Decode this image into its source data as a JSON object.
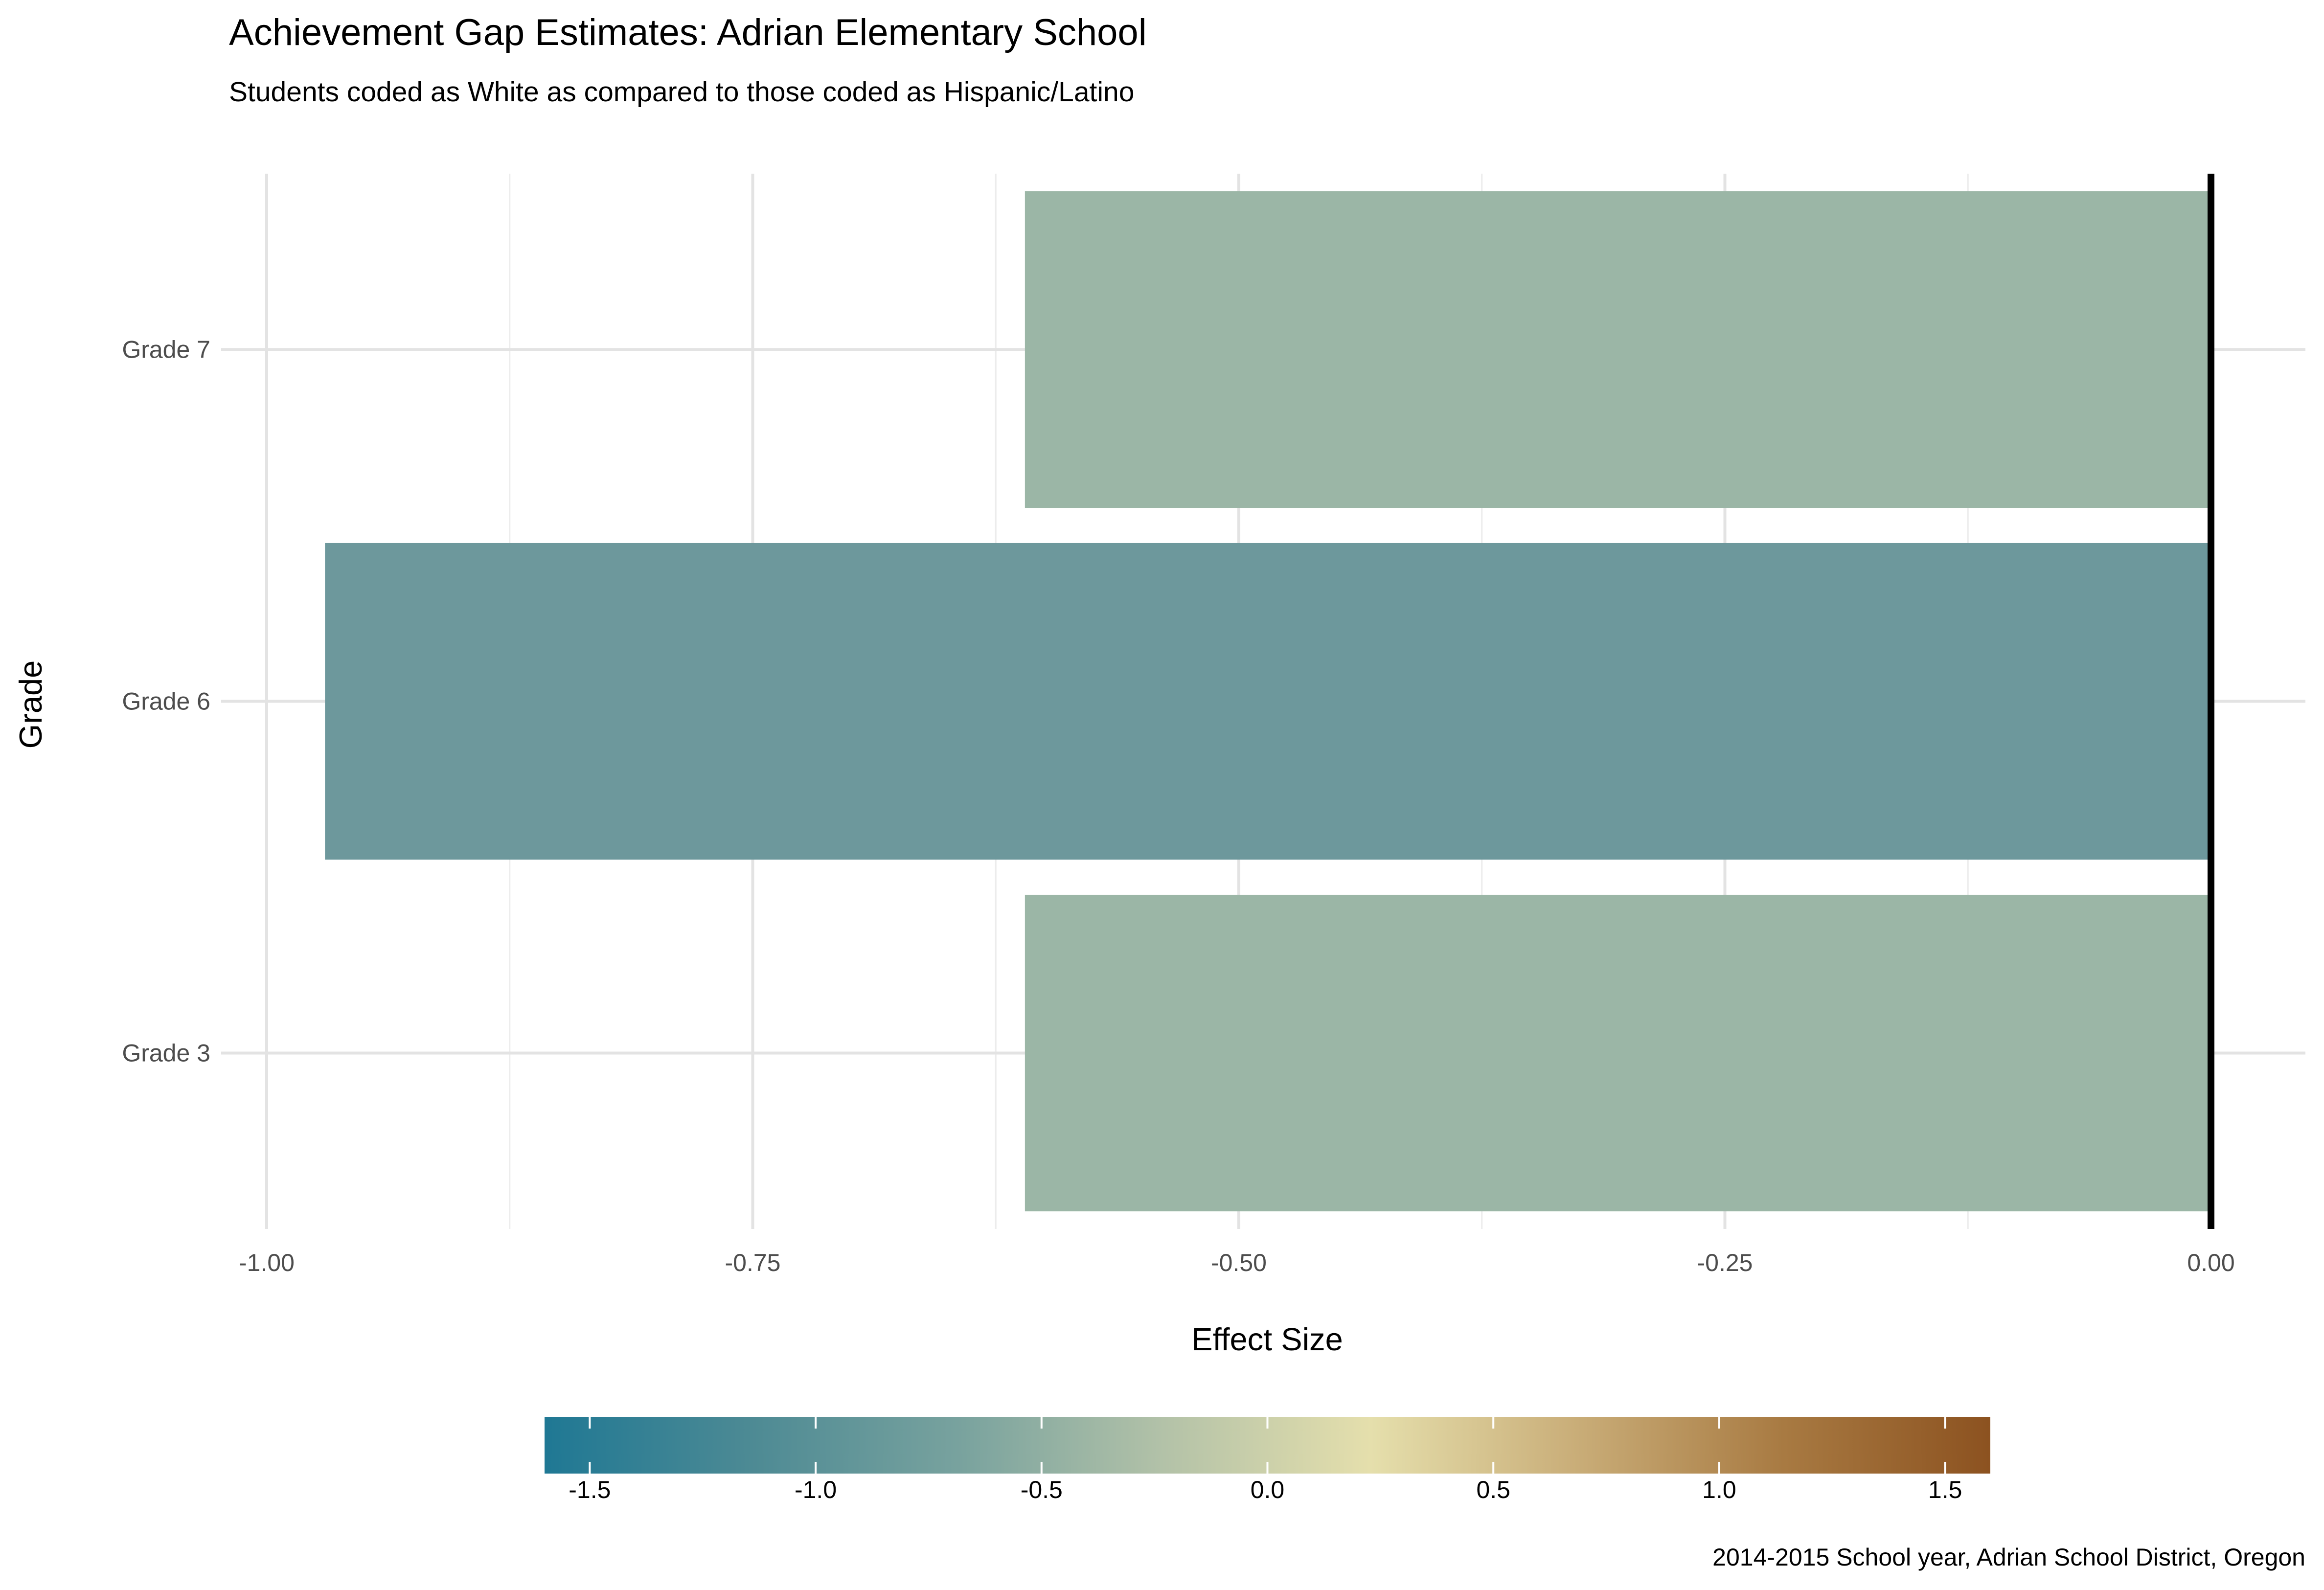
{
  "chart_data": {
    "type": "bar",
    "orientation": "horizontal",
    "title": "Achievement Gap Estimates: Adrian Elementary School",
    "subtitle": "Students coded as White as compared to those coded as Hispanic/Latino",
    "xlabel": "Effect Size",
    "ylabel": "Grade",
    "caption": "2014-2015 School year, Adrian School District, Oregon",
    "categories": [
      "Grade 7",
      "Grade 6",
      "Grade 3"
    ],
    "values": [
      -0.61,
      -0.97,
      -0.61
    ],
    "xlim": [
      -1.0,
      0.0
    ],
    "x_ticks": [
      "-1.00",
      "-0.75",
      "-0.50",
      "-0.25",
      "0.00"
    ],
    "grid": true,
    "reference_line": 0,
    "legend": {
      "type": "colorbar",
      "placement": "bottom",
      "range": [
        -1.6,
        1.6
      ],
      "ticks": [
        "-1.5",
        "-1.0",
        "-0.5",
        "0.0",
        "0.5",
        "1.0",
        "1.5"
      ],
      "palette": [
        "#1f7894",
        "#4d8a94",
        "#78a29e",
        "#b3c2a8",
        "#e5dfac",
        "#c9ad78",
        "#a87a42",
        "#8c5220"
      ]
    },
    "bar_colors": [
      "#9bb6a6",
      "#6d989c",
      "#9bb6a6"
    ]
  }
}
